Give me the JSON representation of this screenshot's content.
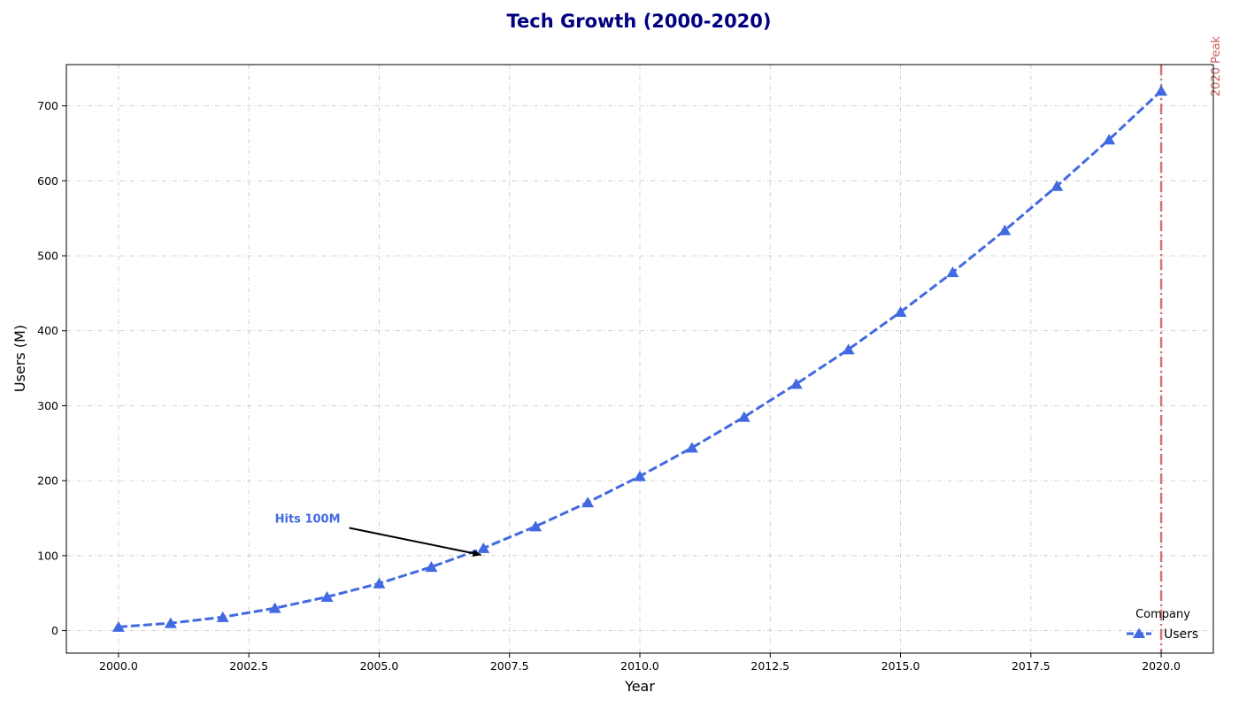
{
  "chart_data": {
    "type": "line",
    "title": "Tech Growth (2000-2020)",
    "xlabel": "Year",
    "ylabel": "Users (M)",
    "xlim": [
      1999,
      2021
    ],
    "ylim": [
      -30,
      755
    ],
    "x_ticks": [
      2000,
      2002.5,
      2005,
      2007.5,
      2010,
      2012.5,
      2015,
      2017.5,
      2020
    ],
    "x_tick_labels": [
      "2000.0",
      "2002.5",
      "2005.0",
      "2007.5",
      "2010.0",
      "2012.5",
      "2015.0",
      "2017.5",
      "2020.0"
    ],
    "y_ticks": [
      0,
      100,
      200,
      300,
      400,
      500,
      600,
      700
    ],
    "y_tick_labels": [
      "0",
      "100",
      "200",
      "300",
      "400",
      "500",
      "600",
      "700"
    ],
    "grid": true,
    "legend": {
      "title": "Company",
      "placement": "bottom-right"
    },
    "series": [
      {
        "name": "Users",
        "color": "#4169e1",
        "marker": "triangle",
        "line_style": "dashed",
        "x": [
          2000,
          2001,
          2002,
          2003,
          2004,
          2005,
          2006,
          2007,
          2008,
          2009,
          2010,
          2011,
          2012,
          2013,
          2014,
          2015,
          2016,
          2017,
          2018,
          2019,
          2020
        ],
        "values": [
          5,
          10,
          18,
          30,
          45,
          63,
          85,
          110,
          139,
          171,
          206,
          244,
          285,
          329,
          375,
          425,
          478,
          534,
          593,
          655,
          720
        ]
      }
    ],
    "annotations": [
      {
        "text": "Hits 100M",
        "x": 2003,
        "y": 150,
        "arrow_to": [
          2007,
          100
        ],
        "color": "#4169e1"
      }
    ],
    "reference_lines": [
      {
        "x": 2020,
        "label": "2020 Peak",
        "color": "#cd5c5c",
        "style": "dashdot"
      }
    ],
    "title_color": "#000080"
  }
}
